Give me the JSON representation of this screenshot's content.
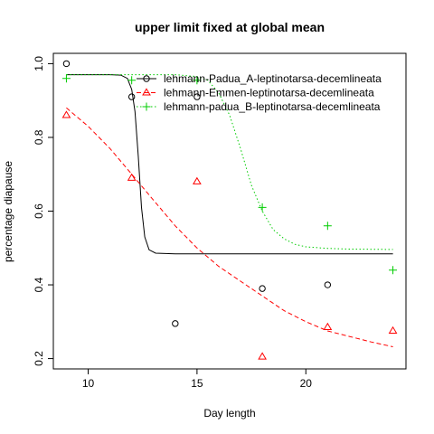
{
  "chart_data": {
    "type": "scatter",
    "title": "upper limit fixed at global mean",
    "xlabel": "Day length",
    "ylabel": "percentage diapause",
    "xlim": [
      8.4,
      24.6
    ],
    "ylim": [
      0.172,
      1.028
    ],
    "x_ticks": [
      10,
      15,
      20
    ],
    "y_ticks": [
      0.2,
      0.4,
      0.6,
      0.8,
      1.0
    ],
    "y_tick_labels": [
      "0.2",
      "0.4",
      "0.6",
      "0.8",
      "1.0"
    ],
    "grid": false,
    "legend_position": "top-right",
    "series": [
      {
        "name": "lehmann-Padua_A-leptinotarsa-decemlineata",
        "color": "#000000",
        "marker": "circle",
        "line_style": "solid",
        "points": [
          {
            "x": 9,
            "y": 1.0
          },
          {
            "x": 12,
            "y": 0.91
          },
          {
            "x": 14,
            "y": 0.295
          },
          {
            "x": 15,
            "y": 0.91
          },
          {
            "x": 18,
            "y": 0.39
          },
          {
            "x": 21,
            "y": 0.4
          }
        ],
        "curve": [
          {
            "x": 9,
            "y": 0.97
          },
          {
            "x": 11,
            "y": 0.97
          },
          {
            "x": 11.5,
            "y": 0.969
          },
          {
            "x": 11.8,
            "y": 0.96
          },
          {
            "x": 12.0,
            "y": 0.93
          },
          {
            "x": 12.15,
            "y": 0.87
          },
          {
            "x": 12.3,
            "y": 0.75
          },
          {
            "x": 12.45,
            "y": 0.61
          },
          {
            "x": 12.6,
            "y": 0.53
          },
          {
            "x": 12.8,
            "y": 0.495
          },
          {
            "x": 13.1,
            "y": 0.486
          },
          {
            "x": 14,
            "y": 0.484
          },
          {
            "x": 24,
            "y": 0.484
          }
        ]
      },
      {
        "name": "lehmann-Emmen-leptinotarsa-decemlineata",
        "color": "#ff0000",
        "marker": "triangle",
        "line_style": "dashed",
        "points": [
          {
            "x": 9,
            "y": 0.86
          },
          {
            "x": 12,
            "y": 0.69
          },
          {
            "x": 15,
            "y": 0.68
          },
          {
            "x": 18,
            "y": 0.205
          },
          {
            "x": 21,
            "y": 0.285
          },
          {
            "x": 24,
            "y": 0.275
          }
        ],
        "curve": [
          {
            "x": 9,
            "y": 0.88
          },
          {
            "x": 10,
            "y": 0.83
          },
          {
            "x": 11,
            "y": 0.77
          },
          {
            "x": 12,
            "y": 0.7
          },
          {
            "x": 13,
            "y": 0.63
          },
          {
            "x": 14,
            "y": 0.56
          },
          {
            "x": 15,
            "y": 0.5
          },
          {
            "x": 16,
            "y": 0.45
          },
          {
            "x": 17,
            "y": 0.41
          },
          {
            "x": 18,
            "y": 0.37
          },
          {
            "x": 19,
            "y": 0.33
          },
          {
            "x": 20,
            "y": 0.3
          },
          {
            "x": 21,
            "y": 0.275
          },
          {
            "x": 22,
            "y": 0.26
          },
          {
            "x": 23,
            "y": 0.245
          },
          {
            "x": 24,
            "y": 0.232
          }
        ]
      },
      {
        "name": "lehmann-padua_B-leptinotarsa-decemlineata",
        "color": "#00cc00",
        "marker": "plus",
        "line_style": "dotted",
        "points": [
          {
            "x": 9,
            "y": 0.96
          },
          {
            "x": 12,
            "y": 0.955
          },
          {
            "x": 15,
            "y": 0.955
          },
          {
            "x": 18,
            "y": 0.61
          },
          {
            "x": 21,
            "y": 0.56
          },
          {
            "x": 24,
            "y": 0.44
          }
        ],
        "curve": [
          {
            "x": 9,
            "y": 0.97
          },
          {
            "x": 14,
            "y": 0.97
          },
          {
            "x": 15,
            "y": 0.965
          },
          {
            "x": 15.5,
            "y": 0.955
          },
          {
            "x": 16,
            "y": 0.92
          },
          {
            "x": 16.5,
            "y": 0.86
          },
          {
            "x": 17,
            "y": 0.77
          },
          {
            "x": 17.5,
            "y": 0.67
          },
          {
            "x": 18,
            "y": 0.6
          },
          {
            "x": 18.5,
            "y": 0.55
          },
          {
            "x": 19,
            "y": 0.525
          },
          {
            "x": 19.5,
            "y": 0.51
          },
          {
            "x": 20,
            "y": 0.503
          },
          {
            "x": 21,
            "y": 0.499
          },
          {
            "x": 22,
            "y": 0.497
          },
          {
            "x": 24,
            "y": 0.496
          }
        ]
      }
    ]
  }
}
